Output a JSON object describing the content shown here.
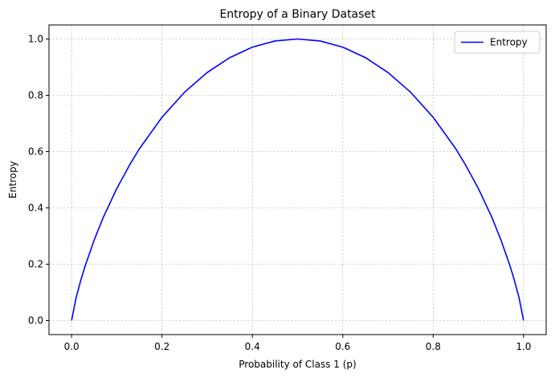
{
  "chart_data": {
    "type": "line",
    "title": "Entropy of a Binary Dataset",
    "xlabel": "Probability of Class 1 (p)",
    "ylabel": "Entropy",
    "xlim": [
      -0.05,
      1.05
    ],
    "ylim": [
      -0.05,
      1.05
    ],
    "xticks": [
      0.0,
      0.2,
      0.4,
      0.6,
      0.8,
      1.0
    ],
    "xtick_labels": [
      "0.0",
      "0.2",
      "0.4",
      "0.6",
      "0.8",
      "1.0"
    ],
    "yticks": [
      0.0,
      0.2,
      0.4,
      0.6,
      0.8,
      1.0
    ],
    "ytick_labels": [
      "0.0",
      "0.2",
      "0.4",
      "0.6",
      "0.8",
      "1.0"
    ],
    "grid": true,
    "legend_position": "top-right",
    "series": [
      {
        "name": "Entropy",
        "color": "#0000ff",
        "x": [
          0.0,
          0.01,
          0.02,
          0.03,
          0.05,
          0.07,
          0.1,
          0.13,
          0.15,
          0.2,
          0.25,
          0.3,
          0.35,
          0.4,
          0.45,
          0.5,
          0.55,
          0.6,
          0.65,
          0.7,
          0.75,
          0.8,
          0.85,
          0.87,
          0.9,
          0.93,
          0.95,
          0.97,
          0.98,
          0.99,
          1.0
        ],
        "y": [
          0.0,
          0.081,
          0.141,
          0.194,
          0.286,
          0.366,
          0.469,
          0.557,
          0.61,
          0.722,
          0.811,
          0.881,
          0.934,
          0.971,
          0.993,
          1.0,
          0.993,
          0.971,
          0.934,
          0.881,
          0.811,
          0.722,
          0.61,
          0.557,
          0.469,
          0.366,
          0.286,
          0.194,
          0.141,
          0.081,
          0.0
        ]
      }
    ]
  }
}
